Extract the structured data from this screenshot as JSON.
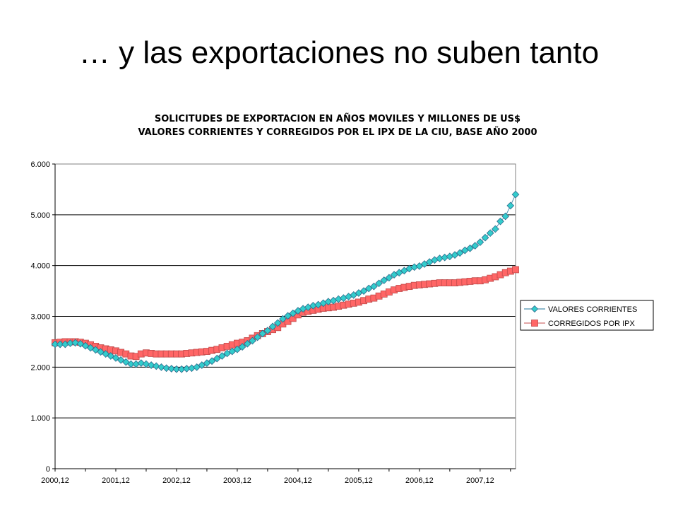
{
  "slide": {
    "title": "… y las exportaciones no suben tanto"
  },
  "chart_data": {
    "type": "line",
    "title": "SOLICITUDES DE EXPORTACION EN AÑOS MOVILES Y MILLONES DE US$",
    "subtitle": "VALORES CORRIENTES Y CORREGIDOS POR EL IPX DE LA CIU, BASE AÑO 2000",
    "xlabel": "",
    "ylabel": "",
    "ylim": [
      0,
      6000
    ],
    "y_ticks": [
      0,
      1000,
      2000,
      3000,
      4000,
      5000,
      6000
    ],
    "y_tick_labels": [
      "0",
      "1.000",
      "2.000",
      "3.000",
      "4.000",
      "5.000",
      "6.000"
    ],
    "x_tick_labels": [
      "2000,12",
      "2001,12",
      "2002,12",
      "2003,12",
      "2004,12",
      "2005,12",
      "2006,12",
      "2007,12"
    ],
    "grid": true,
    "legend_position": "right",
    "series": [
      {
        "name": "VALORES CORRIENTES",
        "color": "#33CCCC",
        "marker": "diamond",
        "values": [
          2450,
          2450,
          2450,
          2470,
          2480,
          2460,
          2420,
          2380,
          2340,
          2300,
          2260,
          2220,
          2180,
          2140,
          2100,
          2060,
          2060,
          2080,
          2060,
          2040,
          2020,
          2000,
          1980,
          1970,
          1960,
          1960,
          1970,
          1980,
          2000,
          2040,
          2080,
          2120,
          2170,
          2220,
          2270,
          2310,
          2350,
          2400,
          2460,
          2520,
          2590,
          2660,
          2720,
          2800,
          2870,
          2950,
          3010,
          3060,
          3110,
          3150,
          3180,
          3210,
          3230,
          3260,
          3290,
          3310,
          3340,
          3360,
          3390,
          3420,
          3460,
          3500,
          3550,
          3590,
          3650,
          3710,
          3760,
          3820,
          3860,
          3900,
          3940,
          3970,
          3990,
          4030,
          4070,
          4110,
          4140,
          4160,
          4180,
          4210,
          4250,
          4300,
          4340,
          4390,
          4460,
          4550,
          4640,
          4720,
          4870,
          4970,
          5180,
          5400
        ]
      },
      {
        "name": "CORREGIDOS POR IPX",
        "color": "#FF6666",
        "marker": "square",
        "values": [
          2480,
          2490,
          2500,
          2500,
          2500,
          2490,
          2470,
          2440,
          2410,
          2380,
          2360,
          2340,
          2320,
          2290,
          2260,
          2220,
          2210,
          2260,
          2280,
          2270,
          2260,
          2260,
          2260,
          2260,
          2260,
          2260,
          2270,
          2280,
          2290,
          2300,
          2310,
          2330,
          2350,
          2380,
          2410,
          2440,
          2470,
          2490,
          2520,
          2570,
          2620,
          2660,
          2700,
          2740,
          2780,
          2850,
          2900,
          2960,
          3030,
          3080,
          3100,
          3120,
          3140,
          3160,
          3170,
          3180,
          3200,
          3220,
          3240,
          3260,
          3280,
          3310,
          3340,
          3360,
          3400,
          3440,
          3480,
          3520,
          3550,
          3570,
          3590,
          3610,
          3620,
          3630,
          3640,
          3650,
          3660,
          3660,
          3660,
          3660,
          3670,
          3680,
          3690,
          3700,
          3700,
          3720,
          3750,
          3780,
          3820,
          3860,
          3890,
          3920
        ]
      }
    ]
  }
}
